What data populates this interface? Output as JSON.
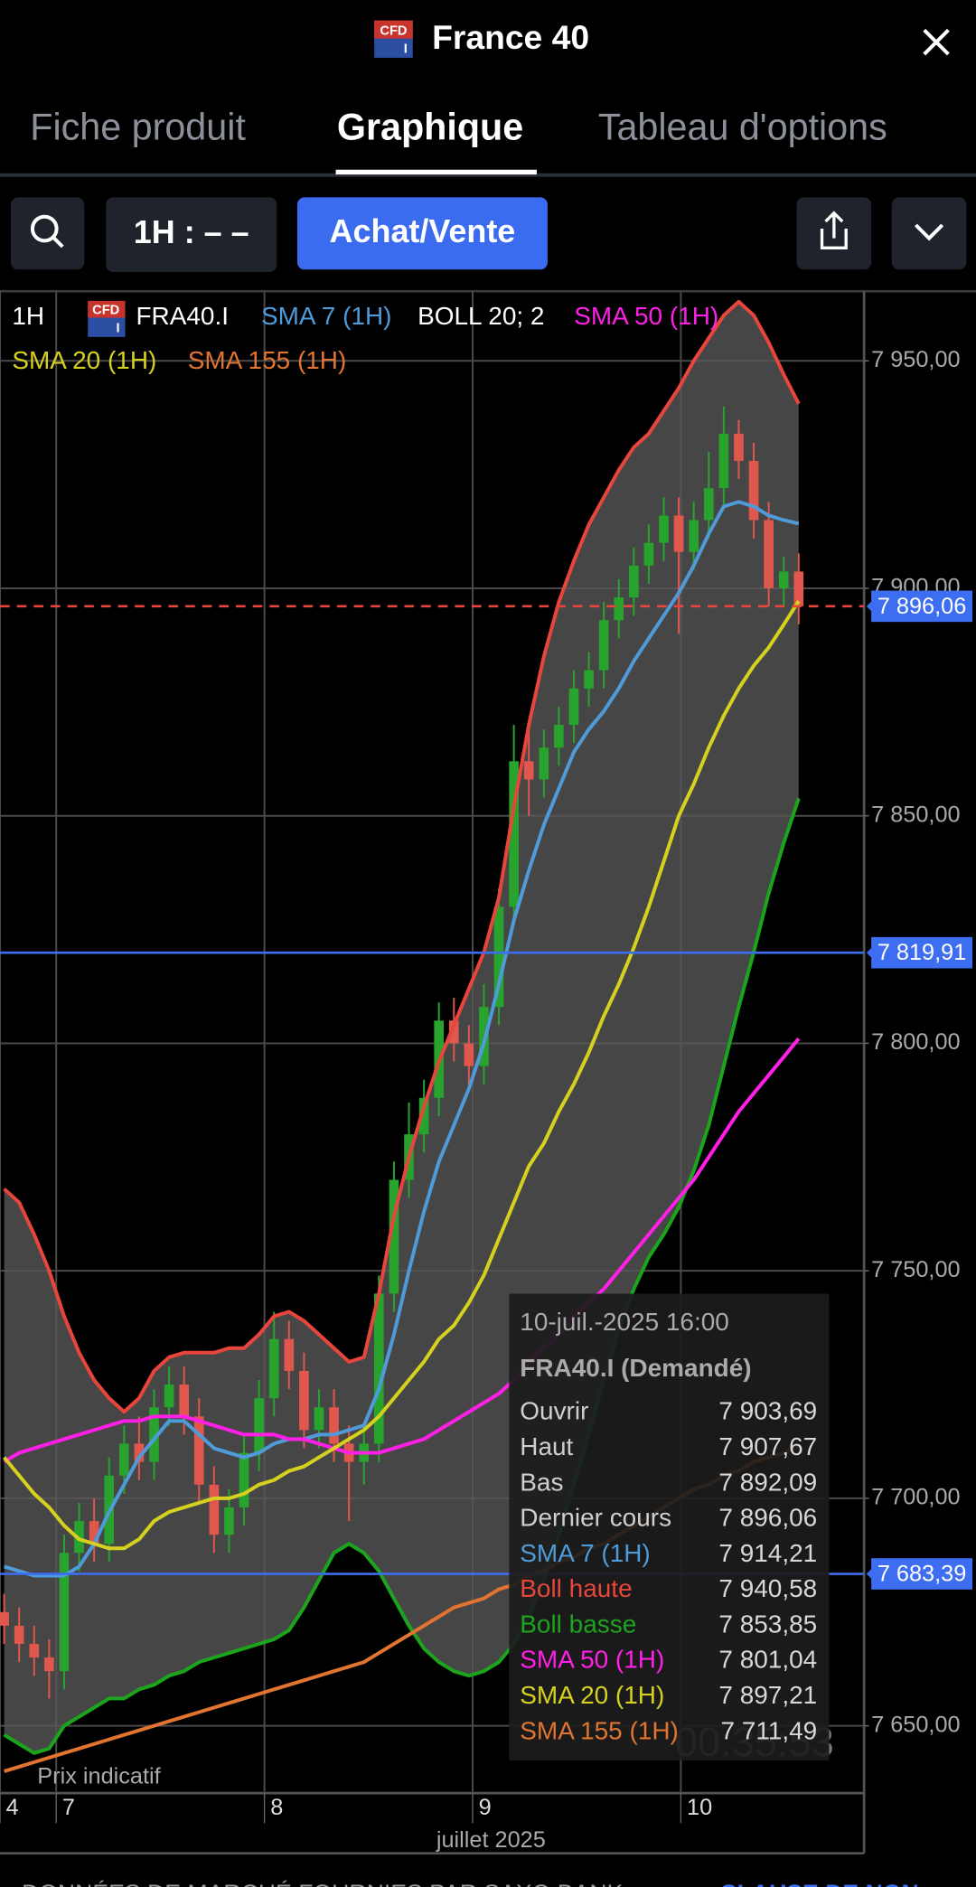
{
  "header": {
    "title": "France 40",
    "icon": {
      "top": "CFD",
      "bottom": "I"
    }
  },
  "tabs": [
    "Fiche produit",
    "Graphique",
    "Tableau d'options"
  ],
  "toolbar": {
    "interval": "1H : – –",
    "trade": "Achat/Vente"
  },
  "chart_data": {
    "type": "candlestick",
    "interval": "1H",
    "symbol": "FRA40.I",
    "xlabel": "juillet 2025",
    "note": "Prix indicatif",
    "countdown": "00:35:53",
    "up_color": "#27a32e",
    "down_color": "#e0574d",
    "grid": true,
    "xlim": [
      -0.27,
      3.88
    ],
    "xticks": [
      {
        "value": -0.27,
        "label": "4"
      },
      {
        "value": 0,
        "label": "7"
      },
      {
        "value": 1,
        "label": "8"
      },
      {
        "value": 2,
        "label": "9"
      },
      {
        "value": 3,
        "label": "10"
      }
    ],
    "ylim": [
      7635.2,
      7965.3
    ],
    "yticks": [
      {
        "value": 7650,
        "label": "7 650,00"
      },
      {
        "value": 7700,
        "label": "7 700,00"
      },
      {
        "value": 7750,
        "label": "7 750,00"
      },
      {
        "value": 7800,
        "label": "7 800,00"
      },
      {
        "value": 7850,
        "label": "7 850,00"
      },
      {
        "value": 7900,
        "label": "7 900,00"
      },
      {
        "value": 7950,
        "label": "7 950,00"
      }
    ],
    "x": [
      -0.25,
      -0.178,
      -0.106,
      -0.034,
      0.038,
      0.11,
      0.182,
      0.254,
      0.326,
      0.398,
      0.47,
      0.542,
      0.614,
      0.686,
      0.758,
      0.83,
      0.902,
      0.974,
      1.046,
      1.118,
      1.19,
      1.262,
      1.334,
      1.406,
      1.478,
      1.55,
      1.622,
      1.694,
      1.766,
      1.838,
      1.91,
      1.982,
      2.054,
      2.126,
      2.198,
      2.27,
      2.342,
      2.414,
      2.486,
      2.558,
      2.63,
      2.702,
      2.774,
      2.846,
      2.918,
      2.99,
      3.062,
      3.134,
      3.206,
      3.278,
      3.35,
      3.422,
      3.494,
      3.566
    ],
    "open": [
      7675,
      7672,
      7668,
      7665,
      7662,
      7688,
      7695,
      7690,
      7705,
      7712,
      7708,
      7720,
      7725,
      7718,
      7703,
      7692,
      7698,
      7710,
      7722,
      7735,
      7728,
      7715,
      7720,
      7712,
      7708,
      7712,
      7745,
      7770,
      7780,
      7788,
      7805,
      7800,
      7795,
      7808,
      7830,
      7862,
      7858,
      7865,
      7870,
      7878,
      7882,
      7893,
      7898,
      7905,
      7910,
      7916,
      7908,
      7915,
      7922,
      7934,
      7928,
      7915,
      7900,
      7903.69
    ],
    "high": [
      7679,
      7676,
      7672,
      7669,
      7692,
      7699,
      7700,
      7709,
      7716,
      7718,
      7724,
      7729,
      7729,
      7722,
      7707,
      7702,
      7714,
      7726,
      7741,
      7739,
      7732,
      7724,
      7724,
      7716,
      7716,
      7749,
      7774,
      7787,
      7792,
      7809,
      7810,
      7804,
      7813,
      7834,
      7870,
      7869,
      7869,
      7874,
      7882,
      7886,
      7897,
      7902,
      7909,
      7914,
      7920,
      7920,
      7919,
      7930,
      7940,
      7937,
      7932,
      7919,
      7907,
      7907.67
    ],
    "low": [
      7668,
      7664,
      7661,
      7656,
      7658,
      7684,
      7686,
      7686,
      7701,
      7704,
      7704,
      7716,
      7714,
      7699,
      7688,
      7688,
      7694,
      7706,
      7718,
      7724,
      7711,
      7711,
      7708,
      7695,
      7703,
      7708,
      7741,
      7766,
      7776,
      7784,
      7796,
      7790,
      7791,
      7804,
      7826,
      7850,
      7854,
      7861,
      7866,
      7874,
      7878,
      7889,
      7894,
      7901,
      7906,
      7890,
      7904,
      7911,
      7918,
      7924,
      7911,
      7896,
      7896,
      7892.09
    ],
    "close": [
      7672,
      7668,
      7665,
      7662,
      7688,
      7695,
      7690,
      7705,
      7712,
      7708,
      7720,
      7725,
      7718,
      7703,
      7692,
      7698,
      7710,
      7722,
      7735,
      7728,
      7715,
      7720,
      7712,
      7708,
      7712,
      7745,
      7770,
      7780,
      7788,
      7805,
      7800,
      7795,
      7808,
      7830,
      7862,
      7858,
      7865,
      7870,
      7878,
      7882,
      7893,
      7898,
      7905,
      7910,
      7916,
      7908,
      7915,
      7922,
      7934,
      7928,
      7915,
      7900,
      7903.69,
      7896.06
    ],
    "series": [
      {
        "name": "SMA 7 (1H)",
        "color": "#4f9bd9",
        "values": [
          7685,
          7684,
          7683,
          7683,
          7683,
          7685,
          7690,
          7697,
          7703,
          7709,
          7713,
          7717,
          7717,
          7714,
          7711,
          7710,
          7709,
          7710,
          7712,
          7713,
          7713,
          7714,
          7714,
          7715,
          7716,
          7724,
          7736,
          7750,
          7763,
          7774,
          7782,
          7790,
          7800,
          7813,
          7827,
          7838,
          7848,
          7856,
          7864,
          7869,
          7873,
          7878,
          7884,
          7889,
          7894,
          7899,
          7905,
          7912,
          7918,
          7919,
          7918,
          7916,
          7915,
          7914.21
        ]
      },
      {
        "name": "BOLL 20; 2",
        "color": "#ffffff",
        "fill": "#585858",
        "upper": {
          "color": "#e8453c",
          "values": [
            7768,
            7765,
            7758,
            7750,
            7740,
            7732,
            7726,
            7722,
            7719,
            7722,
            7728,
            7731,
            7732,
            7732,
            7732,
            7733,
            7733,
            7736,
            7740,
            7741,
            7739,
            7736,
            7733,
            7730,
            7731,
            7745,
            7762,
            7775,
            7786,
            7796,
            7804,
            7812,
            7820,
            7832,
            7852,
            7870,
            7885,
            7897,
            7906,
            7914,
            7920,
            7926,
            7931,
            7934,
            7939,
            7944,
            7950,
            7955,
            7960,
            7963,
            7960,
            7954,
            7947,
            7940.58
          ]
        },
        "lower": {
          "color": "#1ca41c",
          "values": [
            7648,
            7646,
            7644,
            7645,
            7650,
            7652,
            7654,
            7656,
            7656,
            7658,
            7659,
            7661,
            7662,
            7664,
            7665,
            7666,
            7667,
            7668,
            7669,
            7671,
            7676,
            7682,
            7688,
            7690,
            7688,
            7684,
            7678,
            7672,
            7667,
            7664,
            7662,
            7661,
            7662,
            7664,
            7668,
            7674,
            7682,
            7692,
            7703,
            7714,
            7726,
            7737,
            7746,
            7753,
            7758,
            7764,
            7772,
            7782,
            7795,
            7808,
            7820,
            7833,
            7844,
            7853.85
          ]
        }
      },
      {
        "name": "SMA 50 (1H)",
        "color": "#ff1fe6",
        "values": [
          7708,
          7710,
          7711,
          7712,
          7713,
          7714,
          7715,
          7716,
          7717,
          7717,
          7718,
          7718,
          7718,
          7717,
          7716,
          7715,
          7714,
          7714,
          7714,
          7713,
          7713,
          7712,
          7711,
          7710,
          7710,
          7710,
          7711,
          7712,
          7713,
          7715,
          7717,
          7719,
          7721,
          7723,
          7726,
          7730,
          7733,
          7736,
          7740,
          7743,
          7746,
          7750,
          7754,
          7758,
          7762,
          7766,
          7770,
          7775,
          7780,
          7785,
          7789,
          7793,
          7797,
          7801.04
        ]
      },
      {
        "name": "SMA 20 (1H)",
        "color": "#d6d11f",
        "values": [
          7709,
          7705,
          7701,
          7698,
          7694,
          7691,
          7690,
          7689,
          7689,
          7691,
          7695,
          7697,
          7698,
          7699,
          7700,
          7700,
          7701,
          7703,
          7704,
          7706,
          7707,
          7709,
          7711,
          7713,
          7715,
          7718,
          7722,
          7726,
          7730,
          7735,
          7738,
          7743,
          7749,
          7757,
          7765,
          7773,
          7778,
          7785,
          7791,
          7798,
          7806,
          7813,
          7821,
          7830,
          7840,
          7850,
          7857,
          7865,
          7872,
          7878,
          7883,
          7887,
          7892,
          7897.21
        ]
      },
      {
        "name": "SMA 155 (1H)",
        "color": "#e07430",
        "values": [
          7640,
          7641,
          7642,
          7643,
          7644,
          7645,
          7646,
          7647,
          7648,
          7649,
          7650,
          7651,
          7652,
          7653,
          7654,
          7655,
          7656,
          7657,
          7658,
          7659,
          7660,
          7661,
          7662,
          7663,
          7664,
          7666,
          7668,
          7670,
          7672,
          7674,
          7676,
          7677,
          7678,
          7680,
          7681,
          7683,
          7684,
          7686,
          7687,
          7689,
          7690,
          7692,
          7694,
          7696,
          7698,
          7700,
          7702,
          7703,
          7705,
          7706,
          7708,
          7709,
          7710,
          7711.49
        ]
      }
    ],
    "price_lines": [
      {
        "value": 7896.06,
        "label": "7 896,06",
        "color": "#e8453c",
        "dashed": true
      },
      {
        "value": 7819.91,
        "label": "7 819,91",
        "color": "#3d6df0",
        "dashed": false
      },
      {
        "value": 7683.39,
        "label": "7 683,39",
        "color": "#3d6df0",
        "dashed": false
      }
    ],
    "price_label_color": "#3d6df0"
  },
  "tooltip": {
    "title": "10-juil.-2025 16:00",
    "subtitle": "FRA40.I (Demandé)",
    "rows": [
      {
        "label": "Ouvrir",
        "value": "7 903,69",
        "color": "#cfcfcf"
      },
      {
        "label": "Haut",
        "value": "7 907,67",
        "color": "#cfcfcf"
      },
      {
        "label": "Bas",
        "value": "7 892,09",
        "color": "#cfcfcf"
      },
      {
        "label": "Dernier cours",
        "value": "7 896,06",
        "color": "#cfcfcf"
      },
      {
        "label": "SMA 7 (1H)",
        "value": "7 914,21",
        "color": "#4f9bd9"
      },
      {
        "label": "Boll haute",
        "value": "7 940,58",
        "color": "#e8453c"
      },
      {
        "label": "Boll basse",
        "value": "7 853,85",
        "color": "#1ca41c"
      },
      {
        "label": "SMA 50 (1H)",
        "value": "7 801,04",
        "color": "#ff1fe6"
      },
      {
        "label": "SMA 20 (1H)",
        "value": "7 897,21",
        "color": "#d6d11f"
      },
      {
        "label": "SMA 155 (1H)",
        "value": "7 711,49",
        "color": "#e07430"
      }
    ]
  },
  "footer": {
    "text": "DONNÉES DE MARCHÉ FOURNIES PAR SAXO BANK",
    "link": "CLAUSE DE NON"
  }
}
